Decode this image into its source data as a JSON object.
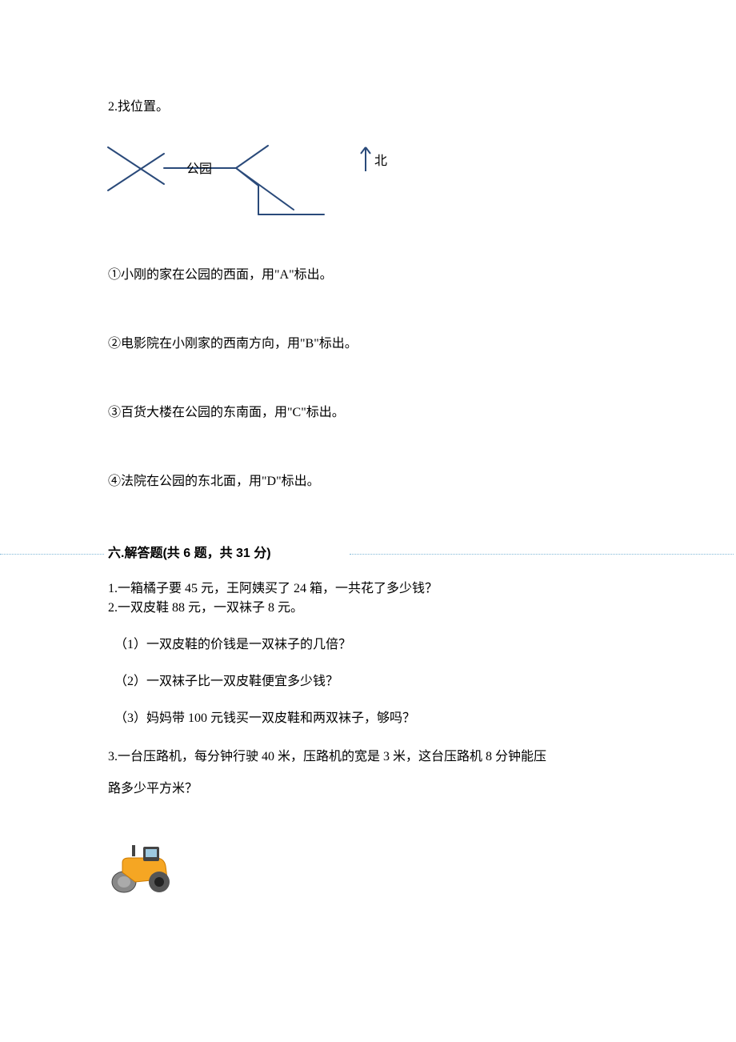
{
  "q2": {
    "title": "2.找位置。",
    "diagram": {
      "park_label": "公园",
      "north_label": "北",
      "line_color": "#2a4a7a",
      "line_width": 2,
      "text_color": "#000000"
    },
    "items": [
      "①小刚的家在公园的西面，用\"A\"标出。",
      "②电影院在小刚家的西南方向，用\"B\"标出。",
      "③百货大楼在公园的东南面，用\"C\"标出。",
      "④法院在公园的东北面，用\"D\"标出。"
    ]
  },
  "section6": {
    "title": "六.解答题(共 6 题，共 31 分)",
    "dotted_color": "#7fb8d8",
    "q1": "1.一箱橘子要 45 元，王阿姨买了 24 箱，一共花了多少钱？",
    "q2": {
      "stem": "2.一双皮鞋 88 元，一双袜子 8 元。",
      "parts": [
        "（1）一双皮鞋的价钱是一双袜子的几倍？",
        "（2）一双袜子比一双皮鞋便宜多少钱？",
        "（3）妈妈带 100 元钱买一双皮鞋和两双袜子，够吗？"
      ]
    },
    "q3": {
      "line1": "3.一台压路机，每分钟行驶 40 米，压路机的宽是 3 米，这台压路机 8 分钟能压",
      "line2": "路多少平方米？"
    }
  },
  "roller_icon": {
    "body_color": "#f5a623",
    "body_dark": "#cc7a00",
    "wheel_color": "#555555",
    "roller_color": "#888888",
    "cab_color": "#444444"
  }
}
